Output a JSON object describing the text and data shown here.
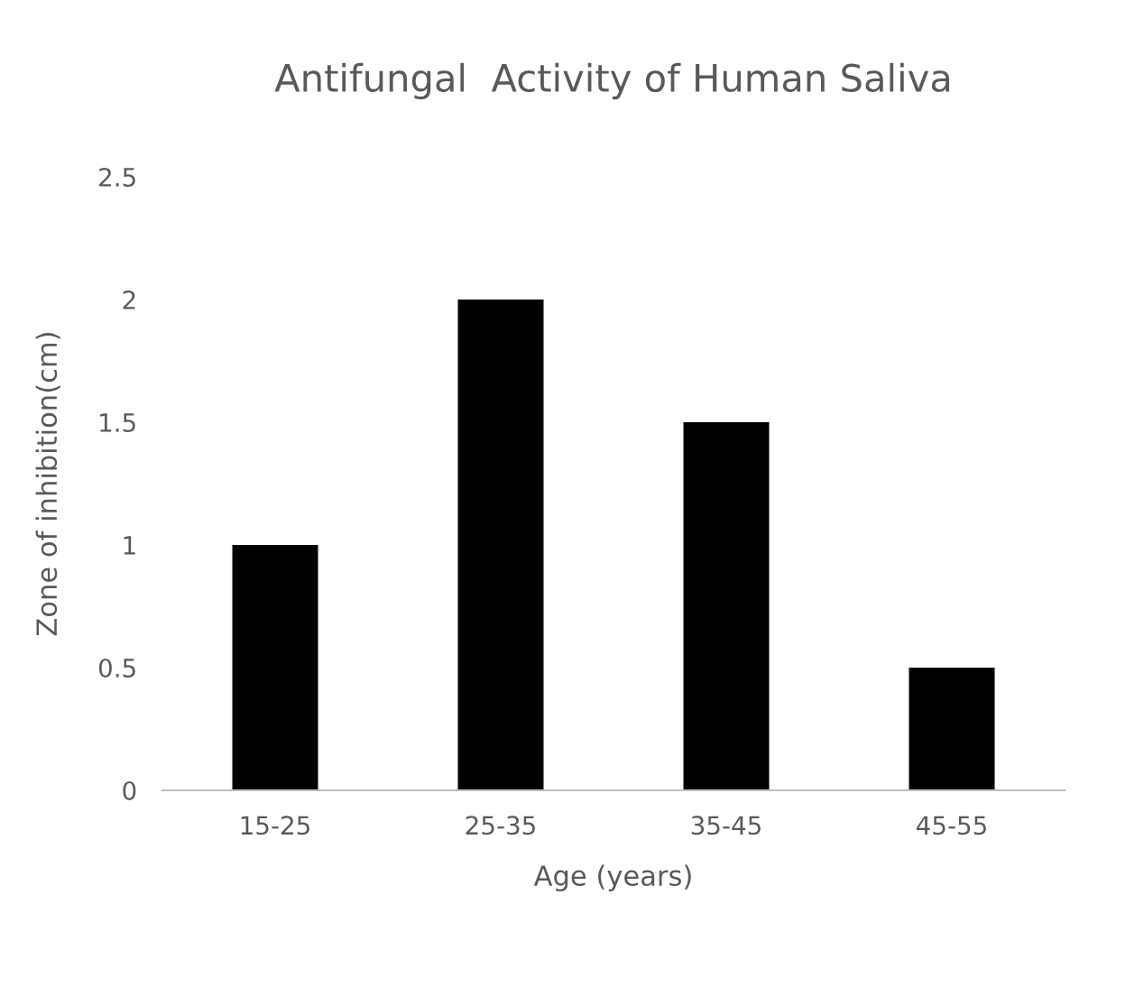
{
  "chart_data": {
    "type": "bar",
    "title": "Antifungal  Activity of Human Saliva",
    "xlabel": "Age (years)",
    "ylabel": "Zone of inhibition(cm)",
    "categories": [
      "15-25",
      "25-35",
      "35-45",
      "45-55"
    ],
    "values": [
      1,
      2,
      1.5,
      0.5
    ],
    "color": "#000000",
    "ylim": [
      0,
      2.5
    ],
    "yticks": [
      0,
      0.5,
      1,
      1.5,
      2,
      2.5
    ],
    "grid": false
  }
}
